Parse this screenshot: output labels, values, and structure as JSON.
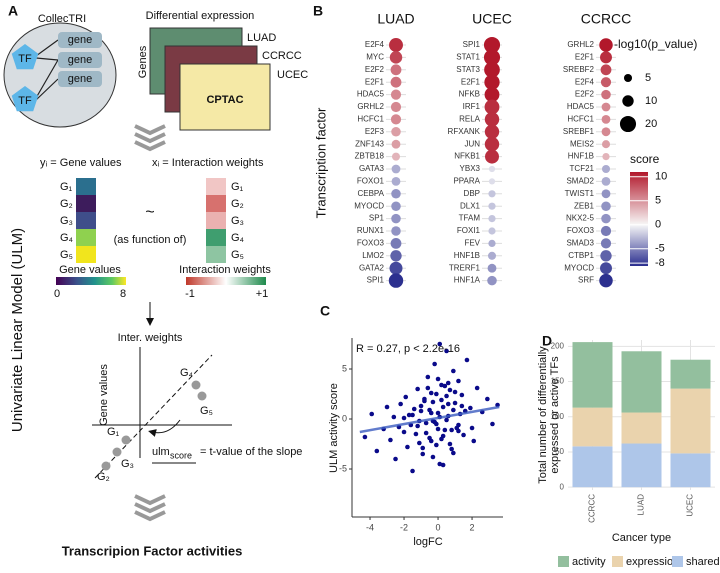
{
  "panel_labels": [
    "A",
    "B",
    "C",
    "D"
  ],
  "diagram": {
    "collectri": "CollecTRI",
    "tf": [
      "TF",
      "TF"
    ],
    "genes": [
      "gene",
      "gene",
      "gene"
    ],
    "diff_expr": "Differential expression",
    "cohorts": [
      "LUAD",
      "CCRCC",
      "UCEC"
    ],
    "source": "CPTAC",
    "genes_axis": "Genes",
    "y_eq": "yᵢ = Gene values",
    "x_eq": "xᵢ = Interaction weights",
    "gene_labels": [
      "G₁",
      "G₂",
      "G₃",
      "G₄",
      "G₅"
    ],
    "tilde": "~",
    "as_function": "(as function of)",
    "gene_values_bar": {
      "title": "Gene values",
      "min": 0,
      "max": 8
    },
    "weights_bar": {
      "title": "Interaction weights",
      "min": -1,
      "max": "+1"
    },
    "ulm_title": "Univariate Linear Model (ULM)",
    "inter_weights": "Inter. weights",
    "gene_values_axis": "Gene values",
    "ulm": "ulm",
    "score": "score",
    "ulm_def": "= t-value of the slope",
    "result": "Transcripion Factor activities"
  },
  "chart_data": [
    {
      "type": "dotplot",
      "ylabel": "Transcription factor",
      "facets": [
        {
          "title": "LUAD",
          "categories": [
            "E2F4",
            "MYC",
            "E2F2",
            "E2F1",
            "HDAC5",
            "GRHL2",
            "HCFC1",
            "E2F3",
            "ZNF143",
            "ZBTB18",
            "GATA3",
            "FOXO1",
            "CEBPA",
            "MYOCD",
            "SP1",
            "RUNX1",
            "FOXO3",
            "LMO2",
            "GATA2",
            "SPI1"
          ],
          "score": [
            9,
            8,
            6,
            6,
            5,
            5,
            5,
            4,
            4,
            3,
            -3,
            -3,
            -4,
            -4,
            -4,
            -4,
            -5,
            -6,
            -7,
            -8
          ],
          "neg_log10_p": [
            15,
            12,
            9,
            9,
            8,
            8,
            8,
            7,
            6,
            5,
            6,
            6,
            7,
            7,
            7,
            7,
            9,
            10,
            13,
            16
          ]
        },
        {
          "title": "UCEC",
          "categories": [
            "SPI1",
            "STAT1",
            "STAT3",
            "E2F1",
            "NFKB",
            "IRF1",
            "RELA",
            "RFXANK",
            "JUN",
            "NFKB1",
            "YBX3",
            "PPARA",
            "DBP",
            "DLX1",
            "TFAM",
            "FOXI1",
            "FEV",
            "HNF1B",
            "TRERF1",
            "HNF1A"
          ],
          "score": [
            10,
            10,
            10,
            10,
            10,
            9,
            9,
            9,
            9,
            9,
            -1,
            -1,
            -2,
            -2,
            -2,
            -2,
            -3,
            -3,
            -4,
            -4
          ],
          "neg_log10_p": [
            20,
            20,
            19,
            18,
            17,
            17,
            16,
            16,
            16,
            15,
            3,
            3,
            4,
            4,
            4,
            4,
            4,
            5,
            6,
            7
          ]
        },
        {
          "title": "CCRCC",
          "categories": [
            "GRHL2",
            "E2F1",
            "SREBF2",
            "E2F4",
            "E2F2",
            "HDAC5",
            "HCFC1",
            "SREBF1",
            "MEIS2",
            "HNF1B",
            "TCF21",
            "SMAD2",
            "TWIST1",
            "ZEB1",
            "NKX2-5",
            "FOXO3",
            "SMAD3",
            "CTBP1",
            "MYOCD",
            "SRF"
          ],
          "score": [
            10,
            9,
            8,
            7,
            6,
            5,
            5,
            5,
            4,
            3,
            -3,
            -3,
            -4,
            -4,
            -4,
            -5,
            -5,
            -6,
            -7,
            -8
          ],
          "neg_log10_p": [
            14,
            11,
            9,
            8,
            7,
            6,
            6,
            6,
            5,
            4,
            5,
            6,
            6,
            7,
            7,
            8,
            8,
            10,
            11,
            14
          ]
        }
      ],
      "size_legend": {
        "title": "-log10(p_value)",
        "values": [
          5,
          10,
          20
        ]
      },
      "color_legend": {
        "title": "score",
        "lim": [
          -8.6,
          11
        ],
        "ticks": [
          10,
          5,
          0,
          -5,
          -8
        ],
        "low": "#2b2f8f",
        "mid": "#f7f7f7",
        "high": "#b2182b"
      }
    },
    {
      "type": "scatter",
      "annotation": "R = 0.27, p < 2.2e-16",
      "xlabel": "logFC",
      "ylabel": "ULM activity score",
      "color": "#0a0a8a",
      "xlim": [
        -5.06,
        3.82
      ],
      "ylim": [
        -9.8,
        8.1
      ],
      "xticks": [
        -4,
        -2,
        0,
        2
      ],
      "yticks": [
        -5,
        0,
        5
      ],
      "x": [
        -4.3,
        -3.9,
        -3.6,
        -3.2,
        -3.0,
        -2.8,
        -2.6,
        -2.5,
        -2.3,
        -2.2,
        -2.0,
        -1.9,
        -1.8,
        -1.7,
        -1.6,
        -1.5,
        -1.4,
        -1.3,
        -1.2,
        -1.1,
        -1.0,
        -0.9,
        -0.8,
        -0.7,
        -0.6,
        -0.5,
        -0.4,
        -0.3,
        -0.2,
        -0.1,
        0.0,
        0.1,
        0.2,
        0.3,
        0.4,
        0.5,
        0.6,
        0.7,
        0.8,
        0.9,
        1.0,
        1.1,
        1.2,
        1.3,
        1.4,
        1.5,
        1.7,
        1.9,
        2.1,
        2.3,
        2.6,
        2.9,
        3.2,
        3.5,
        -1.5,
        -1.2,
        -1.0,
        -0.8,
        -0.7,
        -0.5,
        -0.4,
        -0.3,
        -0.2,
        -0.1,
        0.0,
        0.1,
        0.2,
        0.3,
        0.4,
        0.5,
        0.6,
        0.7,
        0.9,
        1.0,
        1.2,
        1.4,
        -0.9,
        -0.6,
        -0.3,
        0.0,
        0.3,
        0.6,
        0.9,
        1.2,
        -0.4,
        -0.1,
        0.2,
        0.5,
        0.8,
        -1.1,
        1.6,
        -2.0,
        2.0,
        0.1
      ],
      "y": [
        -1.8,
        0.5,
        -3.2,
        -1.0,
        1.2,
        -2.1,
        0.2,
        -4.0,
        -0.8,
        1.5,
        -1.3,
        2.2,
        -2.8,
        0.4,
        -0.6,
        -5.2,
        1.0,
        -1.5,
        3.0,
        -2.4,
        0.8,
        -3.5,
        1.8,
        -0.4,
        4.2,
        -1.9,
        2.6,
        -0.2,
        5.5,
        -2.6,
        0.6,
        -4.5,
        3.4,
        1.2,
        -1.1,
        6.8,
        0.3,
        2.9,
        -3.0,
        4.8,
        1.6,
        -0.9,
        3.8,
        0.5,
        2.4,
        -1.6,
        5.9,
        1.1,
        -2.2,
        3.1,
        0.7,
        2.0,
        -0.5,
        1.4,
        0.4,
        -0.7,
        1.3,
        2.0,
        -1.4,
        0.9,
        -2.2,
        1.7,
        -0.3,
        2.5,
        -1.0,
        0.2,
        1.9,
        -1.7,
        3.3,
        -0.1,
        1.5,
        -2.5,
        0.9,
        2.7,
        -0.6,
        1.3,
        -2.9,
        3.1,
        -3.8,
        4.0,
        -4.6,
        3.6,
        -3.4,
        -1.2,
        0.6,
        -0.5,
        -2.0,
        2.3,
        -1.1,
        -0.2,
        0.8,
        0.1,
        -0.9,
        7.5
      ],
      "fit": {
        "x": [
          -4.6,
          3.6
        ],
        "y": [
          -1.3,
          1.2
        ]
      }
    },
    {
      "type": "bar",
      "stacked": true,
      "xlabel": "Cancer type",
      "ylabel": [
        "Total number of differentially",
        "expressed or active TFs"
      ],
      "categories": [
        "CCRCC",
        "LUAD",
        "UCEC"
      ],
      "ylim": [
        -4,
        209
      ],
      "yticks": [
        0,
        50,
        100,
        150,
        200
      ],
      "grid": true,
      "legend": "bottom",
      "series": [
        {
          "name": "activity",
          "color": "#93bf9e",
          "values": [
            93,
            87,
            41
          ]
        },
        {
          "name": "expression",
          "color": "#ead3ad",
          "values": [
            55,
            44,
            92
          ]
        },
        {
          "name": "shared",
          "color": "#aec6e9",
          "values": [
            58,
            62,
            48
          ]
        }
      ]
    }
  ]
}
